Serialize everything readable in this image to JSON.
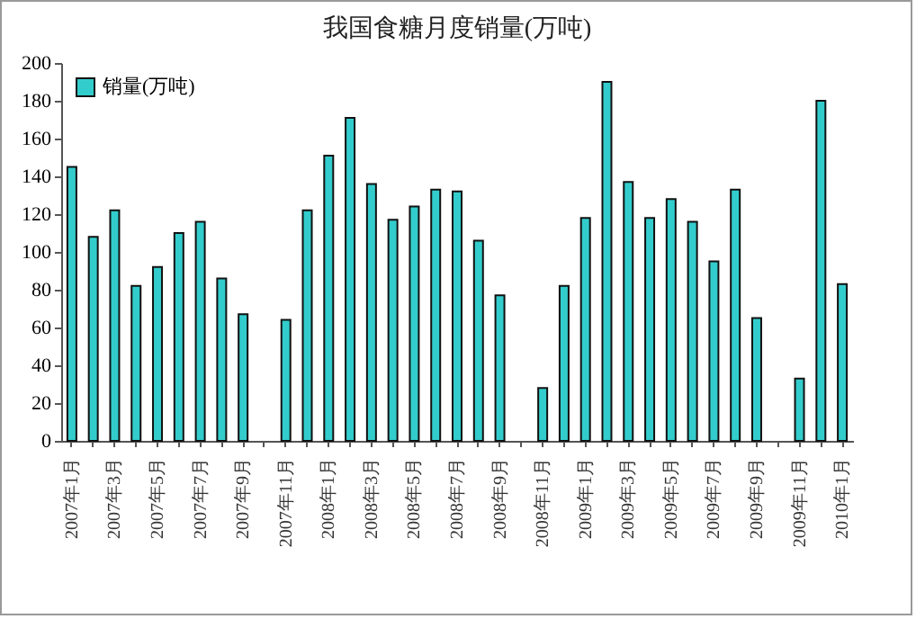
{
  "chart_data": {
    "type": "bar",
    "title": "我国食糖月度销量(万吨)",
    "categories": [
      "2007年1月",
      null,
      "2007年3月",
      null,
      "2007年5月",
      null,
      "2007年7月",
      null,
      "2007年9月",
      null,
      "2007年11月",
      null,
      "2008年1月",
      null,
      "2008年3月",
      null,
      "2008年5月",
      null,
      "2008年7月",
      null,
      "2008年9月",
      null,
      "2008年11月",
      null,
      "2009年1月",
      null,
      "2009年3月",
      null,
      "2009年5月",
      null,
      "2009年7月",
      null,
      "2009年9月",
      null,
      "2009年11月",
      null,
      "2010年1月"
    ],
    "series": [
      {
        "name": "销量(万吨)",
        "color": "#33cccc",
        "values": [
          145,
          108,
          122,
          82,
          92,
          110,
          116,
          86,
          67,
          null,
          64,
          122,
          151,
          171,
          136,
          117,
          124,
          133,
          132,
          106,
          77,
          null,
          28,
          82,
          118,
          190,
          137,
          118,
          128,
          116,
          95,
          133,
          65,
          null,
          33,
          180,
          83
        ]
      }
    ],
    "ylim": [
      0,
      200
    ],
    "yticks": [
      0,
      20,
      40,
      60,
      80,
      100,
      120,
      140,
      160,
      180,
      200
    ],
    "grid": false,
    "legend": "top left"
  }
}
